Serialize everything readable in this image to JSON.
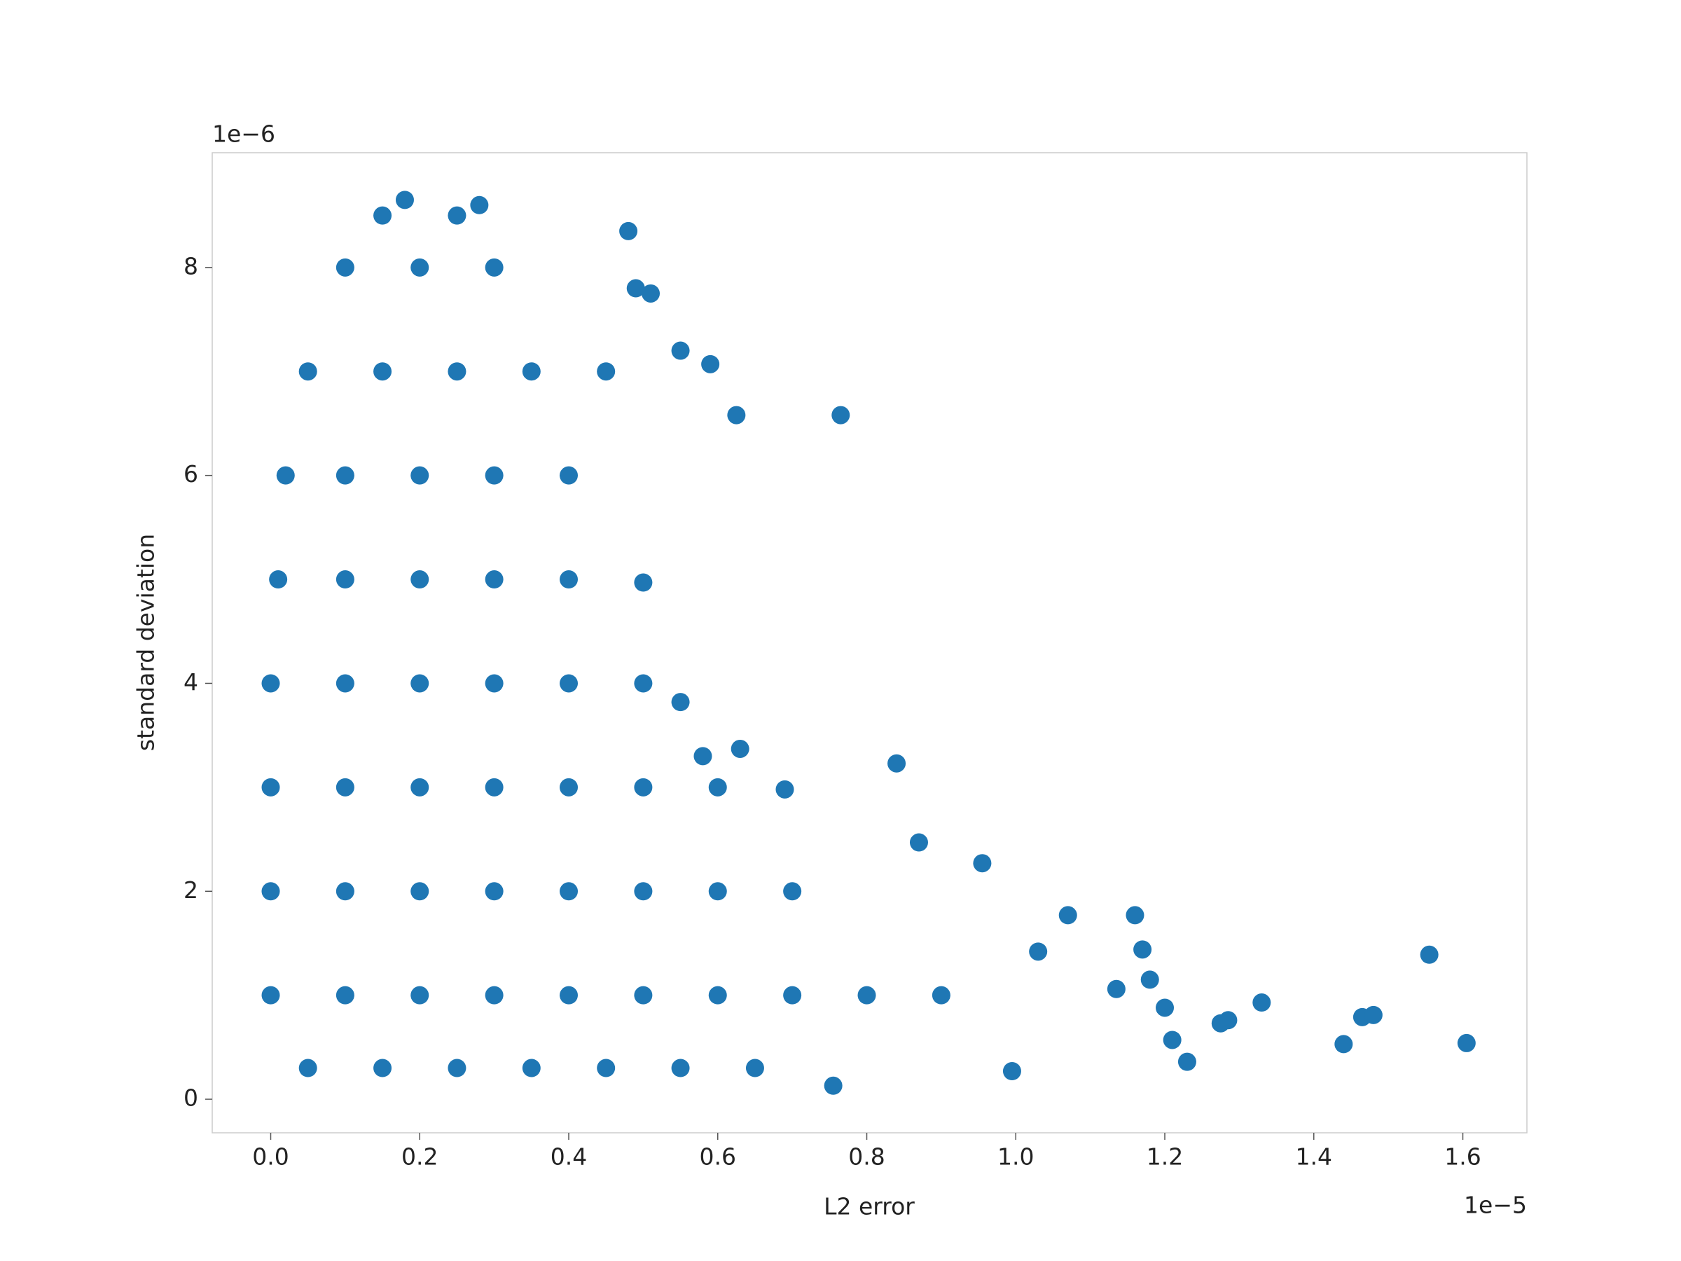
{
  "chart_data": {
    "type": "scatter",
    "xlabel": "L2 error",
    "ylabel": "standard deviation",
    "x_offset_label": "1e−5",
    "y_offset_label": "1e−6",
    "xlim": [
      -0.0785,
      1.686
    ],
    "ylim": [
      -0.323,
      9.104
    ],
    "xticks": [
      {
        "value": 0,
        "label": "0.0"
      },
      0.2,
      0.4,
      0.6,
      0.8,
      {
        "value": 1,
        "label": "1.0"
      },
      1.2,
      1.4,
      1.6
    ],
    "yticks": [
      0,
      2,
      4,
      6,
      8
    ],
    "grid": false,
    "series": [
      {
        "color": "#1f77b4",
        "x": [
          0.15,
          0.25,
          0.1,
          0.2,
          0.3,
          0.05,
          0.15,
          0.25,
          0.35,
          0.45,
          0.02,
          0.1,
          0.2,
          0.3,
          0.4,
          0.01,
          0.1,
          0.2,
          0.3,
          0.4,
          0.0,
          0.1,
          0.2,
          0.3,
          0.4,
          0.5,
          0.0,
          0.1,
          0.2,
          0.3,
          0.4,
          0.5,
          0.6,
          0.0,
          0.1,
          0.2,
          0.3,
          0.4,
          0.5,
          0.6,
          0.7,
          0.0,
          0.1,
          0.2,
          0.3,
          0.4,
          0.5,
          0.6,
          0.7,
          0.8,
          0.9,
          0.05,
          0.15,
          0.25,
          0.35,
          0.45,
          0.55,
          0.65,
          0.48,
          0.49,
          0.51,
          0.55,
          0.59,
          0.625,
          0.765,
          0.5,
          0.55,
          0.84,
          0.63,
          0.87,
          0.955,
          1.07,
          1.16,
          1.17,
          1.18,
          1.2,
          1.21,
          1.23,
          1.275,
          1.285,
          1.33,
          1.44,
          1.465,
          1.48,
          1.555,
          1.605,
          1.135,
          1.03,
          0.995,
          0.755,
          0.28,
          0.18,
          0.69,
          0.58
        ],
        "y": [
          8.5,
          8.5,
          8,
          8,
          8,
          7,
          7,
          7,
          7,
          7,
          6,
          6,
          6,
          6,
          6,
          5,
          5,
          5,
          5,
          5,
          4,
          4,
          4,
          4,
          4,
          4,
          3,
          3,
          3,
          3,
          3,
          3,
          3,
          2,
          2,
          2,
          2,
          2,
          2,
          2,
          2,
          1,
          1,
          1,
          1,
          1,
          1,
          1,
          1,
          1,
          1,
          0.3,
          0.3,
          0.3,
          0.3,
          0.3,
          0.3,
          0.3,
          8.35,
          7.8,
          7.75,
          7.2,
          7.07,
          6.58,
          6.58,
          4.97,
          3.82,
          3.23,
          3.37,
          2.47,
          2.27,
          1.77,
          1.77,
          1.44,
          1.15,
          0.88,
          0.57,
          0.36,
          0.73,
          0.76,
          0.93,
          0.53,
          0.79,
          0.81,
          1.39,
          0.54,
          1.06,
          1.42,
          0.27,
          0.13,
          8.6,
          8.65,
          2.98,
          3.3
        ]
      }
    ]
  }
}
